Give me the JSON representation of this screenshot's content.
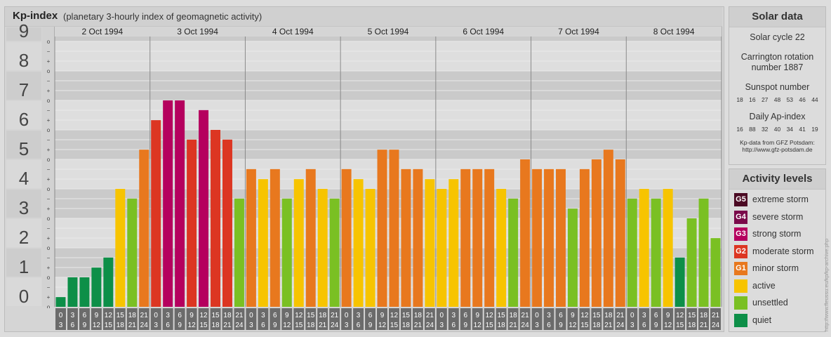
{
  "header": {
    "title": "Kp-index",
    "subtitle": "(planetary 3-hourly index of geomagnetic activity)"
  },
  "chart_data": {
    "type": "bar",
    "title": "Kp-index",
    "subtitle": "(planetary 3-hourly index of geomagnetic activity)",
    "ylim": [
      0,
      9.33
    ],
    "y_ticks": [
      "0",
      "1",
      "2",
      "3",
      "4",
      "5",
      "6",
      "7",
      "8",
      "9"
    ],
    "y_minor_marks": [
      "o",
      "+",
      "−",
      "o",
      "+",
      "−",
      "o",
      "+",
      "−",
      "o",
      "+",
      "−",
      "o",
      "+",
      "−",
      "o",
      "+",
      "−",
      "o",
      "+",
      "−",
      "o",
      "+",
      "−",
      "o",
      "+",
      "−",
      "o"
    ],
    "grid": true,
    "days": [
      "2 Oct 1994",
      "3 Oct 1994",
      "4 Oct 1994",
      "5 Oct 1994",
      "6 Oct 1994",
      "7 Oct 1994",
      "8 Oct 1994"
    ],
    "interval_start": [
      "0",
      "3",
      "6",
      "9",
      "12",
      "15",
      "18",
      "21"
    ],
    "interval_end": [
      "3",
      "6",
      "9",
      "12",
      "15",
      "18",
      "21",
      "24"
    ],
    "values": [
      [
        0.33,
        1.0,
        1.0,
        1.33,
        1.67,
        4.0,
        3.67,
        5.33
      ],
      [
        6.33,
        7.0,
        7.0,
        5.67,
        6.67,
        6.0,
        5.67,
        3.67
      ],
      [
        4.67,
        4.33,
        4.67,
        3.67,
        4.33,
        4.67,
        4.0,
        3.67
      ],
      [
        4.67,
        4.33,
        4.0,
        5.33,
        5.33,
        4.67,
        4.67,
        4.33
      ],
      [
        4.0,
        4.33,
        4.67,
        4.67,
        4.67,
        4.0,
        3.67,
        5.0
      ],
      [
        4.67,
        4.67,
        4.67,
        3.33,
        4.67,
        5.0,
        5.33,
        5.0
      ],
      [
        3.67,
        4.0,
        3.67,
        4.0,
        1.67,
        3.0,
        3.67,
        2.33
      ]
    ],
    "color_thresholds": [
      {
        "min": 0,
        "max": 1.99,
        "color": "#0d8f48"
      },
      {
        "min": 1.99,
        "max": 3.99,
        "color": "#7ac023"
      },
      {
        "min": 3.99,
        "max": 4.5,
        "color": "#f7c400"
      },
      {
        "min": 4.5,
        "max": 5.5,
        "color": "#e8781e"
      },
      {
        "min": 5.5,
        "max": 6.5,
        "color": "#dc3622"
      },
      {
        "min": 6.5,
        "max": 7.5,
        "color": "#b5005e"
      },
      {
        "min": 7.5,
        "max": 8.5,
        "color": "#7a0a4a"
      },
      {
        "min": 8.5,
        "max": 10,
        "color": "#4b0a23"
      }
    ]
  },
  "solar": {
    "heading": "Solar data",
    "cycle": "Solar cycle 22",
    "carrington_line1": "Carrington rotation",
    "carrington_line2": "number 1887",
    "sunspot_label": "Sunspot number",
    "sunspot_values": "18 16 27 48 53 46 44",
    "ap_label": "Daily Ap-index",
    "ap_values": "16 88 32 40 34 41 19",
    "credit_line1": "Kp-data from GFZ Potsdam:",
    "credit_line2": "http://www.gfz-potsdam.de"
  },
  "activity": {
    "heading": "Activity levels",
    "levels": [
      {
        "code": "G5",
        "label": "extreme storm",
        "color": "#4b0a23"
      },
      {
        "code": "G4",
        "label": "severe storm",
        "color": "#7a0a4a"
      },
      {
        "code": "G3",
        "label": "strong storm",
        "color": "#b5005e"
      },
      {
        "code": "G2",
        "label": "moderate storm",
        "color": "#dc3622"
      },
      {
        "code": "G1",
        "label": "minor storm",
        "color": "#e8781e"
      },
      {
        "code": "",
        "label": "active",
        "color": "#f7c400"
      },
      {
        "code": "",
        "label": "unsettled",
        "color": "#7ac023"
      },
      {
        "code": "",
        "label": "quiet",
        "color": "#0d8f48"
      }
    ]
  },
  "watermark": "http://www.fleussu.eu/kp/kp-archive.php"
}
